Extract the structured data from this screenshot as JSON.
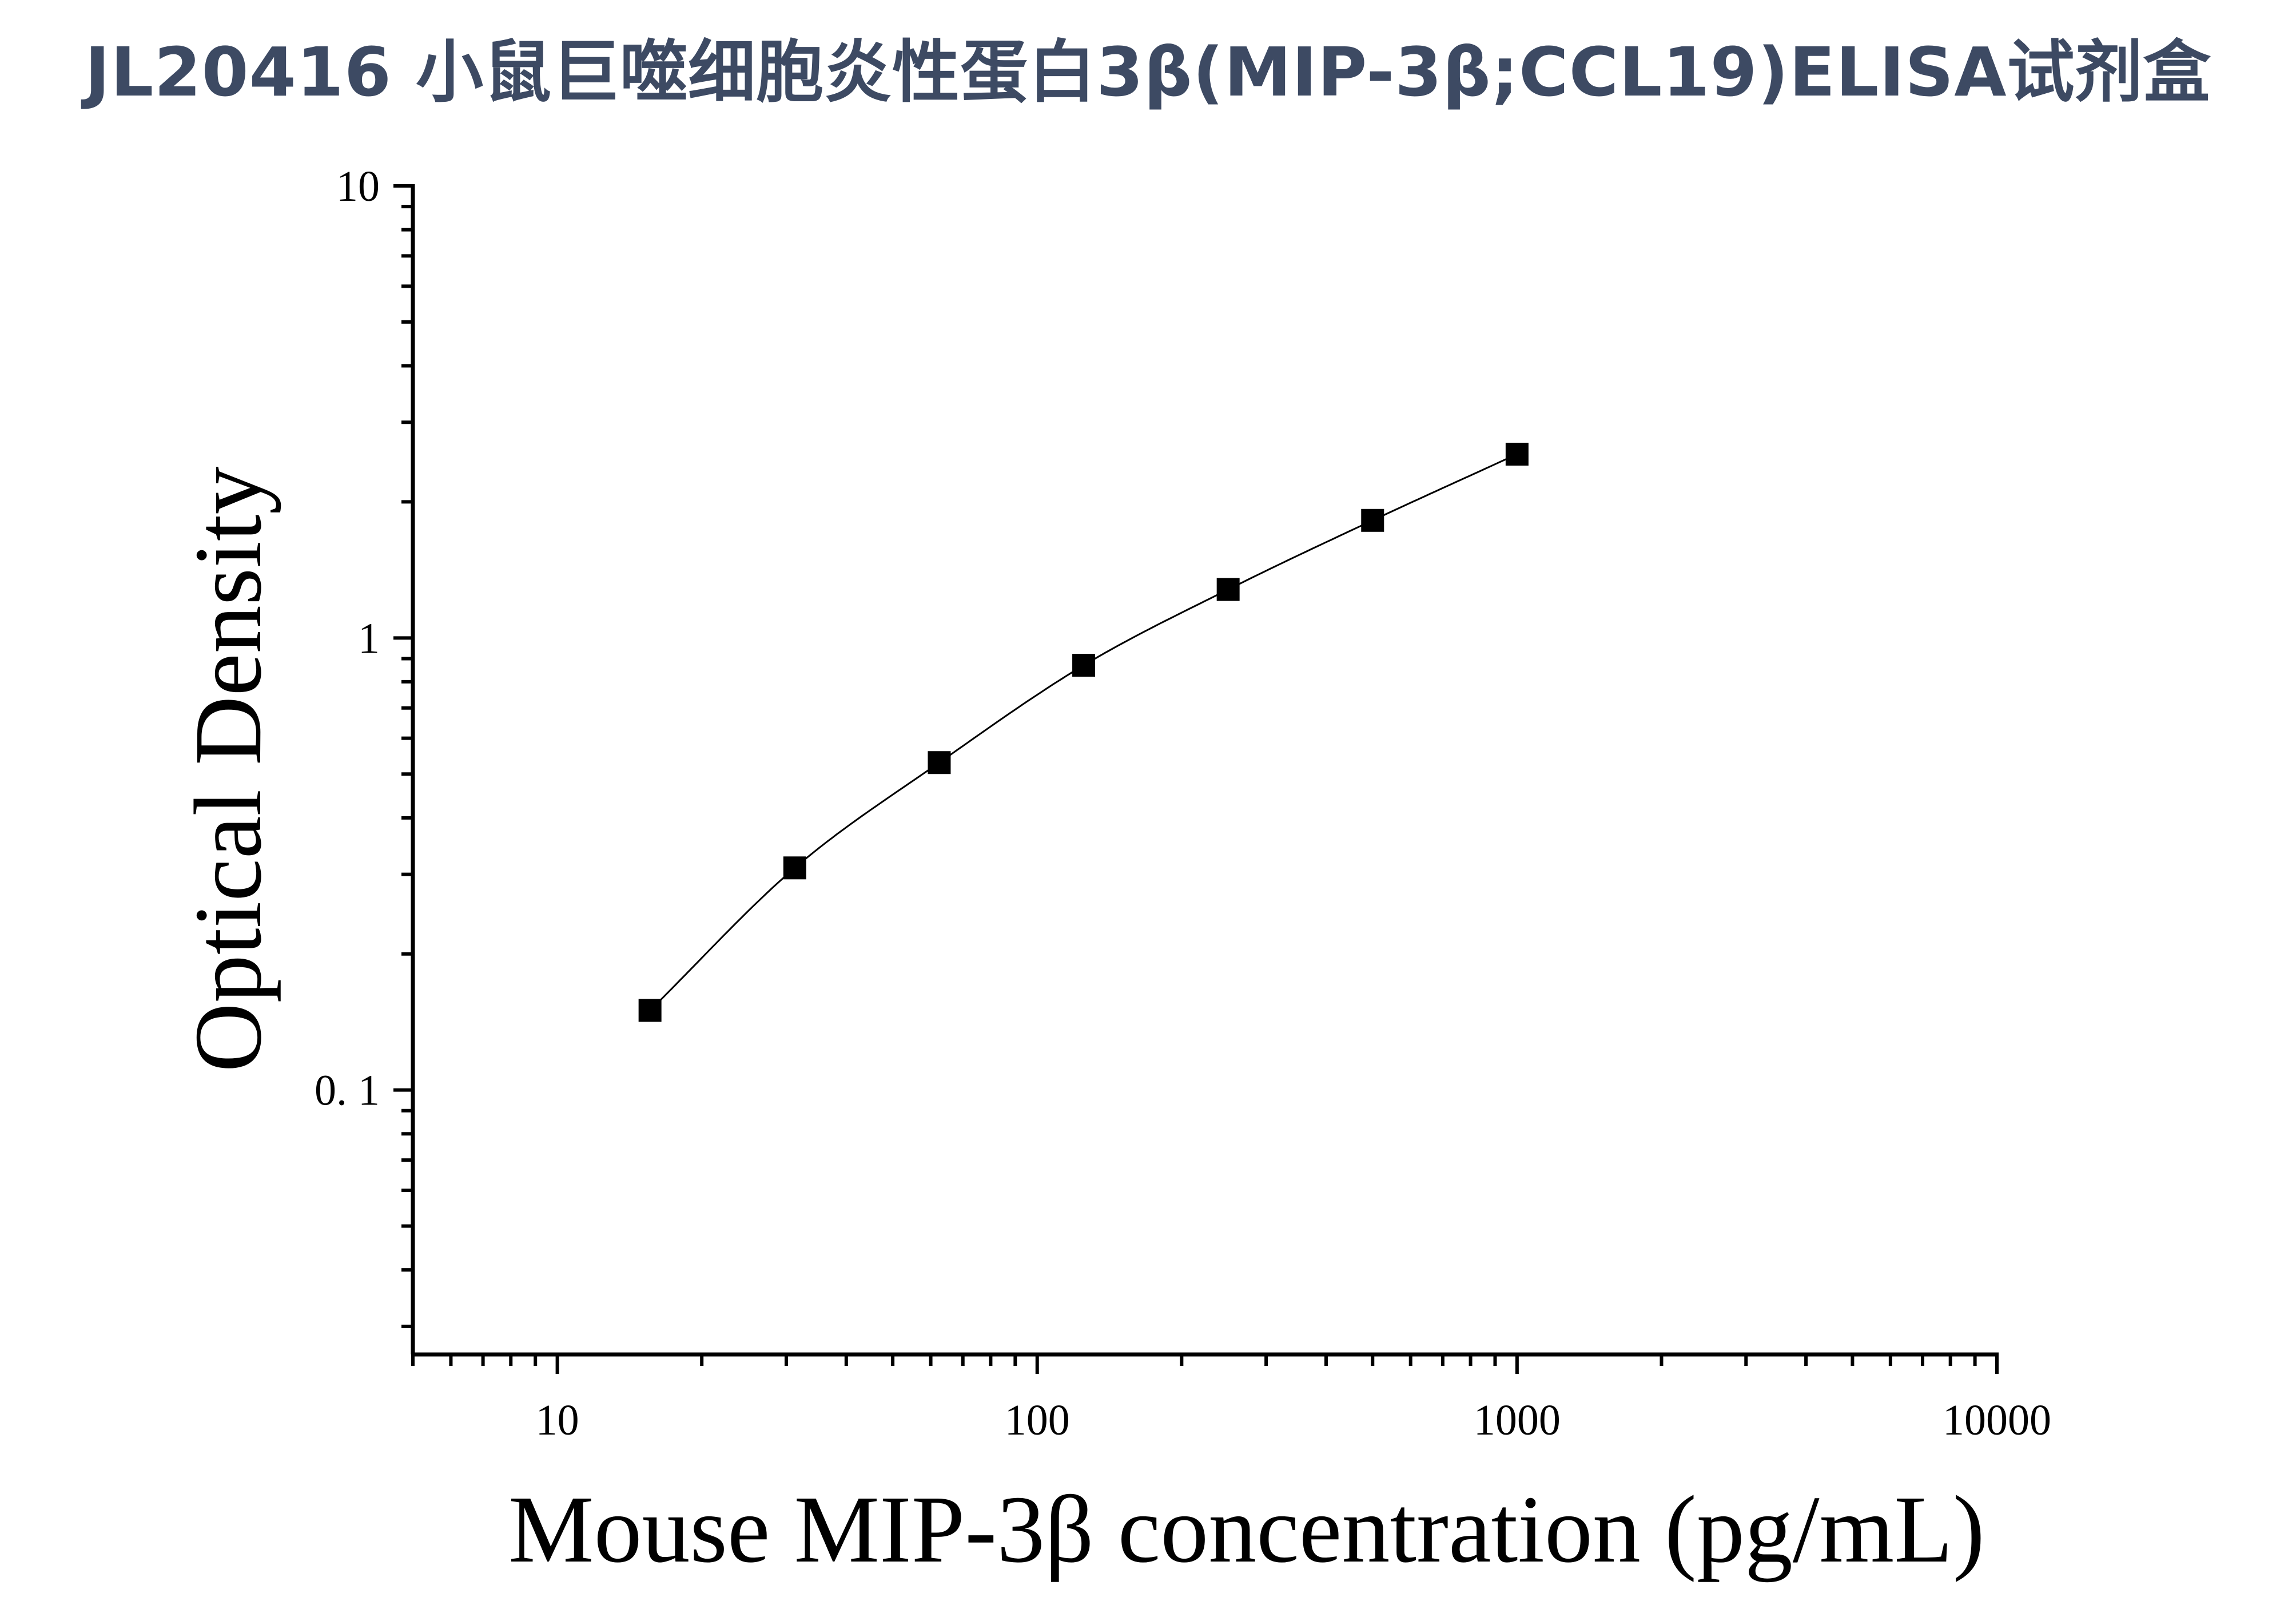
{
  "page": {
    "title": "JL20416 小鼠巨噬细胞炎性蛋白3β(MIP-3β;CCL19)ELISA试剂盒"
  },
  "chart_data": {
    "type": "scatter",
    "x": [
      15.6,
      31.25,
      62.5,
      125,
      250,
      500,
      1000
    ],
    "y": [
      0.15,
      0.31,
      0.53,
      0.87,
      1.28,
      1.82,
      2.55
    ],
    "fit_line": true,
    "marker": "square",
    "xlabel": "Mouse MIP-3β concentration (pg/mL)",
    "ylabel": "Optical Density",
    "xscale": "log",
    "yscale": "log",
    "xlim": [
      5,
      10000
    ],
    "ylim": [
      0.026,
      10
    ],
    "xticks": [
      10,
      100,
      1000,
      10000
    ],
    "xtick_labels": [
      "10",
      "100",
      "1000",
      "10000"
    ],
    "yticks": [
      0.1,
      1,
      10
    ],
    "ytick_labels": [
      "0. 1",
      "1",
      "10"
    ],
    "grid": false,
    "legend": "none",
    "colors": {
      "marker": "#000000",
      "line": "#000000",
      "title": "#3d4a63"
    }
  }
}
